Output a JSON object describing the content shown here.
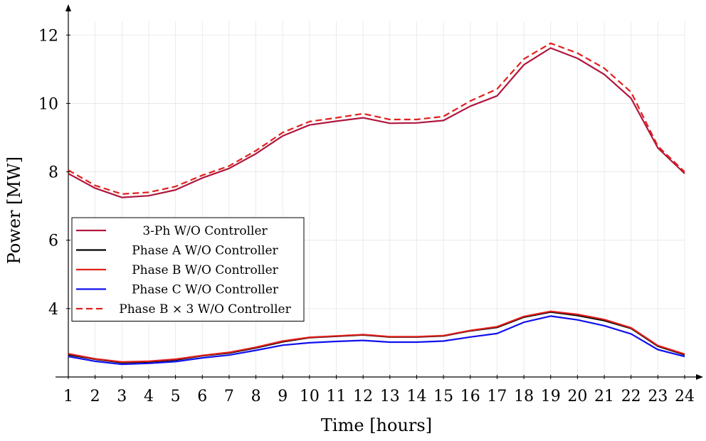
{
  "chart_data": {
    "type": "line",
    "xlabel": "Time [hours]",
    "ylabel": "Power [MW]",
    "x": [
      1,
      2,
      3,
      4,
      5,
      6,
      7,
      8,
      9,
      10,
      11,
      12,
      13,
      14,
      15,
      16,
      17,
      18,
      19,
      20,
      21,
      22,
      23,
      24
    ],
    "xlim": [
      1,
      24
    ],
    "ylim": [
      2,
      12.9
    ],
    "yticks": [
      4,
      6,
      8,
      10,
      12
    ],
    "grid": true,
    "legend_position": "middle-left",
    "series": [
      {
        "name": "3-Ph W/O Controller",
        "color": "#b0163e",
        "dash": "solid",
        "values": [
          7.95,
          7.52,
          7.25,
          7.3,
          7.47,
          7.82,
          8.1,
          8.53,
          9.05,
          9.37,
          9.48,
          9.58,
          9.42,
          9.43,
          9.5,
          9.92,
          10.22,
          11.13,
          11.62,
          11.32,
          10.85,
          10.15,
          8.7,
          7.95
        ]
      },
      {
        "name": "Phase A W/O Controller",
        "color": "#000000",
        "dash": "solid",
        "values": [
          2.65,
          2.52,
          2.42,
          2.44,
          2.5,
          2.62,
          2.7,
          2.85,
          3.03,
          3.15,
          3.19,
          3.23,
          3.17,
          3.17,
          3.2,
          3.35,
          3.45,
          3.75,
          3.9,
          3.8,
          3.65,
          3.42,
          2.9,
          2.65
        ]
      },
      {
        "name": "Phase B W/O Controller",
        "color": "#e0201c",
        "dash": "solid",
        "values": [
          2.68,
          2.53,
          2.44,
          2.46,
          2.52,
          2.63,
          2.72,
          2.87,
          3.05,
          3.16,
          3.2,
          3.24,
          3.18,
          3.18,
          3.21,
          3.36,
          3.47,
          3.77,
          3.92,
          3.83,
          3.68,
          3.44,
          2.92,
          2.67
        ]
      },
      {
        "name": "Phase C W/O Controller",
        "color": "#1010ee",
        "dash": "solid",
        "values": [
          2.6,
          2.46,
          2.37,
          2.4,
          2.45,
          2.56,
          2.64,
          2.78,
          2.93,
          3.0,
          3.04,
          3.07,
          3.02,
          3.02,
          3.05,
          3.17,
          3.27,
          3.6,
          3.78,
          3.67,
          3.5,
          3.26,
          2.8,
          2.6
        ]
      },
      {
        "name": "Phase B × 3 W/O Controller",
        "color": "#e0201c",
        "dash": "dashed",
        "values": [
          8.05,
          7.6,
          7.35,
          7.4,
          7.57,
          7.9,
          8.17,
          8.62,
          9.15,
          9.47,
          9.58,
          9.7,
          9.53,
          9.53,
          9.62,
          10.07,
          10.42,
          11.3,
          11.76,
          11.47,
          11.03,
          10.33,
          8.75,
          8.0
        ]
      }
    ]
  }
}
